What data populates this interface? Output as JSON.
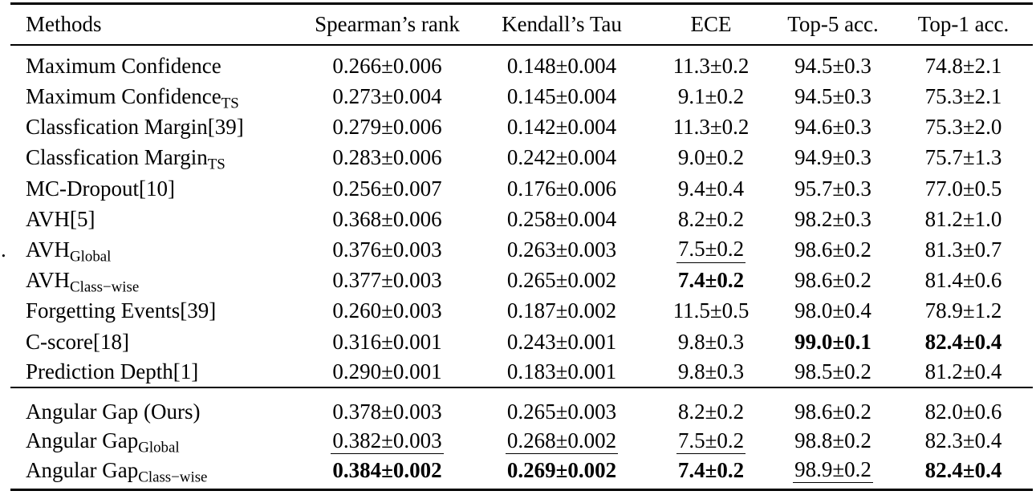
{
  "colors": {
    "text": "#000000",
    "background": "#ffffff",
    "rule": "#000000"
  },
  "stray_mark": ".",
  "table": {
    "columns": [
      {
        "label": "Methods",
        "align": "left"
      },
      {
        "label": "Spearman’s rank"
      },
      {
        "label": "Kendall’s Tau"
      },
      {
        "label": "ECE"
      },
      {
        "label": "Top-5 acc."
      },
      {
        "label": "Top-1 acc."
      }
    ],
    "sections": [
      {
        "name": "baselines",
        "rows": [
          {
            "method": {
              "label": "Maximum Confidence"
            },
            "values": [
              {
                "text": "0.266±0.006"
              },
              {
                "text": "0.148±0.004"
              },
              {
                "text": "11.3±0.2"
              },
              {
                "text": "94.5±0.3"
              },
              {
                "text": "74.8±2.1"
              }
            ]
          },
          {
            "method": {
              "label": "Maximum Confidence",
              "sub": "TS"
            },
            "values": [
              {
                "text": "0.273±0.004"
              },
              {
                "text": "0.145±0.004"
              },
              {
                "text": "9.1±0.2"
              },
              {
                "text": "94.5±0.3"
              },
              {
                "text": "75.3±2.1"
              }
            ]
          },
          {
            "method": {
              "label": "Classfication Margin[39]"
            },
            "values": [
              {
                "text": "0.279±0.006"
              },
              {
                "text": "0.142±0.004"
              },
              {
                "text": "11.3±0.2"
              },
              {
                "text": "94.6±0.3"
              },
              {
                "text": "75.3±2.0"
              }
            ]
          },
          {
            "method": {
              "label": "Classfication Margin",
              "sub": "TS"
            },
            "values": [
              {
                "text": "0.283±0.006"
              },
              {
                "text": "0.242±0.004"
              },
              {
                "text": "9.0±0.2"
              },
              {
                "text": "94.9±0.3"
              },
              {
                "text": "75.7±1.3"
              }
            ]
          },
          {
            "method": {
              "label": "MC-Dropout[10]"
            },
            "values": [
              {
                "text": "0.256±0.007"
              },
              {
                "text": "0.176±0.006"
              },
              {
                "text": "9.4±0.4"
              },
              {
                "text": "95.7±0.3"
              },
              {
                "text": "77.0±0.5"
              }
            ]
          },
          {
            "method": {
              "label": "AVH[5]"
            },
            "values": [
              {
                "text": "0.368±0.006"
              },
              {
                "text": "0.258±0.004"
              },
              {
                "text": "8.2±0.2"
              },
              {
                "text": "98.2±0.3"
              },
              {
                "text": "81.2±1.0"
              }
            ]
          },
          {
            "method": {
              "label": "AVH",
              "sub": "Global"
            },
            "values": [
              {
                "text": "0.376±0.003"
              },
              {
                "text": "0.263±0.003"
              },
              {
                "text": "7.5±0.2",
                "style": "underline"
              },
              {
                "text": "98.6±0.2"
              },
              {
                "text": "81.3±0.7"
              }
            ]
          },
          {
            "method": {
              "label": "AVH",
              "sub": "Class−wise"
            },
            "values": [
              {
                "text": "0.377±0.003"
              },
              {
                "text": "0.265±0.002"
              },
              {
                "text": "7.4±0.2",
                "style": "bold"
              },
              {
                "text": "98.6±0.2"
              },
              {
                "text": "81.4±0.6"
              }
            ]
          },
          {
            "method": {
              "label": "Forgetting Events[39]"
            },
            "values": [
              {
                "text": "0.260±0.003"
              },
              {
                "text": "0.187±0.002"
              },
              {
                "text": "11.5±0.5"
              },
              {
                "text": "98.0±0.4"
              },
              {
                "text": "78.9±1.2"
              }
            ]
          },
          {
            "method": {
              "label": "C-score[18]"
            },
            "values": [
              {
                "text": "0.316±0.001"
              },
              {
                "text": "0.243±0.001"
              },
              {
                "text": "9.8±0.3"
              },
              {
                "text": "99.0±0.1",
                "style": "bold"
              },
              {
                "text": "82.4±0.4",
                "style": "bold"
              }
            ]
          },
          {
            "method": {
              "label": "Prediction Depth[1]"
            },
            "values": [
              {
                "text": "0.290±0.001"
              },
              {
                "text": "0.183±0.001"
              },
              {
                "text": "9.8±0.3"
              },
              {
                "text": "98.5±0.2"
              },
              {
                "text": "81.2±0.4"
              }
            ]
          }
        ]
      },
      {
        "name": "ours",
        "rows": [
          {
            "method": {
              "label": "Angular Gap (Ours)"
            },
            "values": [
              {
                "text": "0.378±0.003"
              },
              {
                "text": "0.265±0.003"
              },
              {
                "text": "8.2±0.2"
              },
              {
                "text": "98.6±0.2"
              },
              {
                "text": "82.0±0.6"
              }
            ]
          },
          {
            "method": {
              "label": "Angular Gap",
              "sub": "Global"
            },
            "values": [
              {
                "text": "0.382±0.003",
                "style": "underline"
              },
              {
                "text": "0.268±0.002",
                "style": "underline"
              },
              {
                "text": "7.5±0.2",
                "style": "underline"
              },
              {
                "text": "98.8±0.2"
              },
              {
                "text": "82.3±0.4"
              }
            ]
          },
          {
            "method": {
              "label": "Angular Gap",
              "sub": "Class−wise"
            },
            "values": [
              {
                "text": "0.384±0.002",
                "style": "bold"
              },
              {
                "text": "0.269±0.002",
                "style": "bold"
              },
              {
                "text": "7.4±0.2",
                "style": "bold"
              },
              {
                "text": "98.9±0.2",
                "style": "underline"
              },
              {
                "text": "82.4±0.4",
                "style": "bold"
              }
            ]
          }
        ]
      }
    ]
  }
}
